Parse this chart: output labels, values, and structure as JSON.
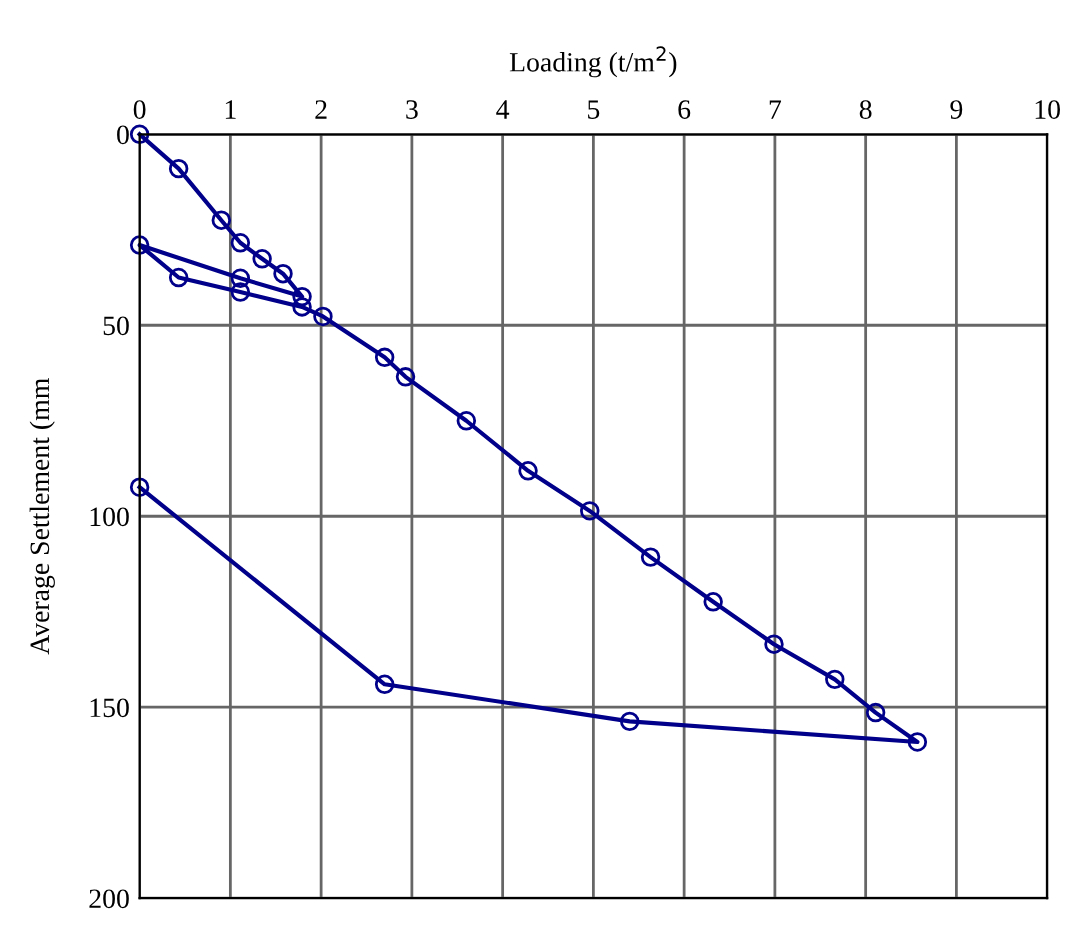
{
  "chart_data": {
    "type": "line",
    "xlabel": "Loading (t/m$^{2}$)",
    "ylabel": "Average Settlement (mm",
    "series": [
      {
        "color": "#00008b",
        "x": [
          0,
          0.43,
          0.9,
          1.11,
          1.35,
          1.58,
          1.79,
          1.11,
          0,
          0.43,
          1.11,
          1.79,
          2.02,
          2.7,
          2.93,
          3.6,
          4.28,
          4.96,
          5.63,
          6.32,
          6.99,
          7.66,
          8.11,
          8.57,
          5.4,
          2.7,
          0
        ],
        "values": [
          0,
          9,
          22.5,
          28.4,
          32.6,
          36.5,
          42.5,
          37.7,
          29,
          37.5,
          41.3,
          45.2,
          47.7,
          58.4,
          63.5,
          75,
          88.1,
          98.6,
          110.7,
          122.4,
          133.5,
          142.7,
          151.4,
          159.1,
          153.7,
          144,
          92.4
        ]
      }
    ],
    "xlim": [
      0,
      10
    ],
    "xticks": [
      0,
      1,
      2,
      3,
      4,
      5,
      6,
      7,
      8,
      9,
      10
    ],
    "ylim": [
      200,
      0
    ],
    "yticks": [
      0,
      50,
      100,
      150,
      200
    ],
    "grid": true,
    "marker": "circle",
    "line_style": "solid"
  }
}
